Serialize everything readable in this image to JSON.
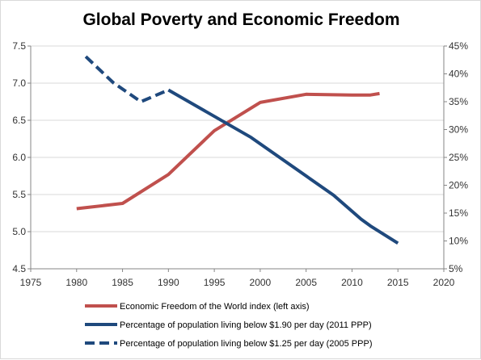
{
  "chart_data": {
    "type": "line",
    "title": "Global Poverty and Economic Freedom",
    "x_ticks": [
      "1975",
      "1980",
      "1985",
      "1990",
      "1995",
      "2000",
      "2005",
      "2010",
      "2015",
      "2020"
    ],
    "x_tick_values": [
      1975,
      1980,
      1985,
      1990,
      1995,
      2000,
      2005,
      2010,
      2015,
      2020
    ],
    "y_left_ticks": [
      "4.5",
      "5.0",
      "5.5",
      "6.0",
      "6.5",
      "7.0",
      "7.5"
    ],
    "y_left_tick_values": [
      4.5,
      5.0,
      5.5,
      6.0,
      6.5,
      7.0,
      7.5
    ],
    "y_right_ticks": [
      "5%",
      "10%",
      "15%",
      "20%",
      "25%",
      "30%",
      "35%",
      "40%",
      "45%"
    ],
    "y_right_tick_values": [
      5,
      10,
      15,
      20,
      25,
      30,
      35,
      40,
      45
    ],
    "xlim": [
      1975,
      2020
    ],
    "ylim_left": [
      4.5,
      7.5
    ],
    "ylim_right": [
      5,
      45
    ],
    "grid": "horizontal",
    "legend_position": "bottom",
    "series": [
      {
        "name": "Economic Freedom of the World index (left axis)",
        "axis": "left",
        "color": "#c0504d",
        "dash": "solid",
        "x": [
          1980,
          1985,
          1990,
          1995,
          2000,
          2005,
          2010,
          2012,
          2013
        ],
        "y": [
          5.31,
          5.38,
          5.77,
          6.36,
          6.74,
          6.85,
          6.84,
          6.84,
          6.86
        ]
      },
      {
        "name": "Percentage of population living below $1.90 per day (2011 PPP)",
        "axis": "right",
        "color": "#1f497d",
        "dash": "solid",
        "x": [
          1990,
          1999,
          2008,
          2011,
          2012,
          2015
        ],
        "y": [
          37.1,
          28.6,
          18.2,
          13.9,
          12.7,
          9.6
        ]
      },
      {
        "name": "Percentage of population living below $1.25 per day (2005 PPP)",
        "axis": "right",
        "color": "#1f497d",
        "dash": "dashed",
        "x": [
          1981,
          1984,
          1987,
          1990
        ],
        "y": [
          43.1,
          38.4,
          35.0,
          37.1
        ]
      }
    ]
  }
}
